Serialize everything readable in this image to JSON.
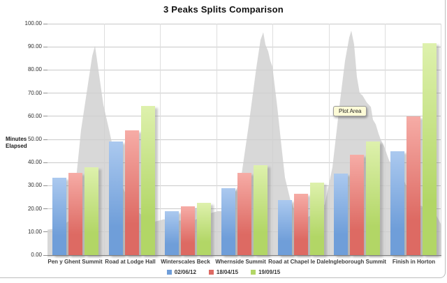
{
  "title": "3 Peaks Splits Comparison",
  "y_axis": {
    "label_line1": "Minutes",
    "label_line2": "Elapsed"
  },
  "tooltip": {
    "text": "Plot Area"
  },
  "chart_data": {
    "type": "bar",
    "title": "3 Peaks Splits Comparison",
    "xlabel": "",
    "ylabel": "Minutes Elapsed",
    "ylim": [
      0,
      100
    ],
    "grid": true,
    "legend_position": "bottom",
    "y_ticks": [
      "0.00",
      "10.00",
      "20.00",
      "30.00",
      "40.00",
      "50.00",
      "60.00",
      "70.00",
      "80.00",
      "90.00",
      "100.00"
    ],
    "categories": [
      "Pen y Ghent Summit",
      "Road at Lodge Hall",
      "Winterscales Beck",
      "Whernside Summit",
      "Road at Chapel le Dale",
      "Ingleborough Summit",
      "Finish in Horton"
    ],
    "series": [
      {
        "name": "02/06/12",
        "color": "#6f9ed9",
        "color_light": "#abc9ef",
        "values": [
          33.3,
          49.0,
          19.0,
          29.0,
          23.7,
          35.3,
          45.0
        ]
      },
      {
        "name": "18/04/15",
        "color": "#dd6a63",
        "color_light": "#f6aca6",
        "values": [
          35.5,
          54.0,
          21.0,
          35.5,
          26.5,
          43.5,
          60.0
        ]
      },
      {
        "name": "19/09/15",
        "color": "#b2d666",
        "color_light": "#def1ad",
        "values": [
          38.0,
          64.5,
          22.5,
          39.0,
          31.3,
          49.0,
          91.5
        ]
      }
    ],
    "background_profile": {
      "description": "elevation silhouette, minutes-scale values",
      "color": "#cfcfcf",
      "opacity": 0.82,
      "points": [
        [
          0,
          11
        ],
        [
          12,
          11.5
        ],
        [
          22,
          13
        ],
        [
          32,
          15
        ],
        [
          40,
          30
        ],
        [
          48,
          54
        ],
        [
          58,
          74
        ],
        [
          64,
          86
        ],
        [
          68,
          90.5
        ],
        [
          72,
          82
        ],
        [
          80,
          65
        ],
        [
          89,
          53
        ],
        [
          99,
          39
        ],
        [
          108,
          29
        ],
        [
          119,
          22
        ],
        [
          132,
          18
        ],
        [
          142,
          16
        ],
        [
          154,
          14.5
        ],
        [
          167,
          15.5
        ],
        [
          177,
          14
        ],
        [
          190,
          15
        ],
        [
          202,
          14
        ],
        [
          217,
          16
        ],
        [
          232,
          18
        ],
        [
          244,
          19
        ],
        [
          254,
          19
        ],
        [
          267,
          26
        ],
        [
          277,
          33
        ],
        [
          288,
          56
        ],
        [
          299,
          81
        ],
        [
          305,
          93
        ],
        [
          309,
          96.3
        ],
        [
          312,
          91
        ],
        [
          316,
          88
        ],
        [
          319,
          84
        ],
        [
          322,
          81.5
        ],
        [
          329,
          64
        ],
        [
          335,
          47
        ],
        [
          340,
          33.5
        ],
        [
          348,
          23.5
        ],
        [
          356,
          18
        ],
        [
          367,
          16
        ],
        [
          377,
          17
        ],
        [
          389,
          19
        ],
        [
          397,
          22
        ],
        [
          408,
          38
        ],
        [
          419,
          67
        ],
        [
          426,
          84
        ],
        [
          432,
          94
        ],
        [
          435,
          97
        ],
        [
          439,
          91
        ],
        [
          443,
          77
        ],
        [
          447,
          70
        ],
        [
          451,
          69
        ],
        [
          457,
          66
        ],
        [
          463,
          64
        ],
        [
          466,
          58.5
        ],
        [
          470,
          56.5
        ],
        [
          474,
          52.5
        ],
        [
          477,
          50
        ],
        [
          482,
          47
        ],
        [
          489,
          41
        ],
        [
          497,
          37
        ],
        [
          504,
          34.5
        ],
        [
          509,
          33
        ],
        [
          517,
          28
        ],
        [
          524,
          24
        ],
        [
          529,
          22
        ],
        [
          537,
          21
        ],
        [
          547,
          20.5
        ],
        [
          557,
          17
        ],
        [
          564,
          13
        ]
      ]
    }
  }
}
